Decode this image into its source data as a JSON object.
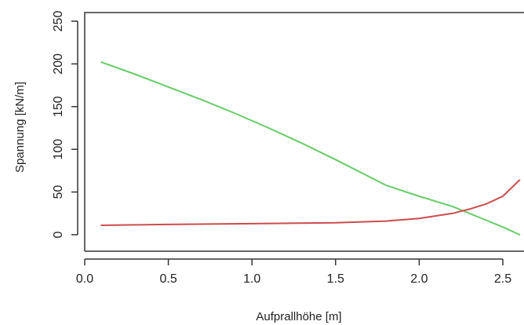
{
  "chart_data": {
    "type": "line",
    "xlabel": "Aufprallhöhe [m]",
    "ylabel": "Spannung [kN/m]",
    "xlim": [
      0.0,
      2.6
    ],
    "ylim": [
      0,
      250
    ],
    "x_ticks": [
      0.0,
      0.5,
      1.0,
      1.5,
      2.0,
      2.5
    ],
    "x_tick_labels": [
      "0.0",
      "0.5",
      "1.0",
      "1.5",
      "2.0",
      "2.5"
    ],
    "y_ticks": [
      0,
      50,
      100,
      150,
      200,
      250
    ],
    "y_tick_labels": [
      "0",
      "50",
      "100",
      "150",
      "200",
      "250"
    ],
    "grid": false,
    "series": [
      {
        "color": "#66cc66",
        "points": [
          [
            0.1,
            202
          ],
          [
            0.3,
            188
          ],
          [
            0.5,
            173
          ],
          [
            0.7,
            158
          ],
          [
            0.9,
            142
          ],
          [
            1.1,
            125
          ],
          [
            1.3,
            107
          ],
          [
            1.5,
            88
          ],
          [
            1.7,
            68
          ],
          [
            1.8,
            58
          ],
          [
            2.0,
            45
          ],
          [
            2.2,
            33
          ],
          [
            2.4,
            17
          ],
          [
            2.5,
            9
          ],
          [
            2.6,
            0
          ]
        ]
      },
      {
        "color": "#cc4c4c",
        "points": [
          [
            0.1,
            11
          ],
          [
            0.5,
            12
          ],
          [
            1.0,
            13
          ],
          [
            1.5,
            14
          ],
          [
            1.8,
            16
          ],
          [
            2.0,
            19
          ],
          [
            2.2,
            25
          ],
          [
            2.3,
            30
          ],
          [
            2.4,
            36
          ],
          [
            2.5,
            45
          ],
          [
            2.6,
            64
          ]
        ]
      }
    ]
  }
}
